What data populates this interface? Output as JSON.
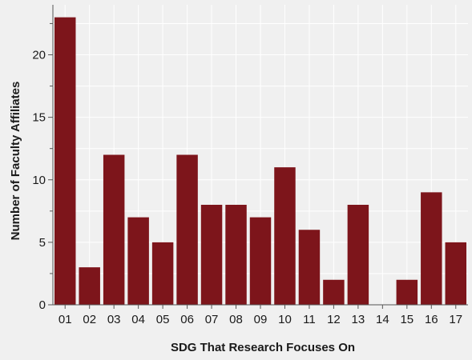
{
  "chart_data": {
    "type": "bar",
    "categories": [
      "01",
      "02",
      "03",
      "04",
      "05",
      "06",
      "07",
      "08",
      "09",
      "10",
      "11",
      "12",
      "13",
      "14",
      "15",
      "16",
      "17"
    ],
    "values": [
      23,
      3,
      12,
      7,
      5,
      12,
      8,
      8,
      7,
      11,
      6,
      2,
      8,
      0,
      2,
      9,
      5
    ],
    "title": "",
    "xlabel": "SDG That Research Focuses On",
    "ylabel": "Number of Faculty Affiliates",
    "ylim": [
      0,
      24
    ],
    "yticks": [
      0,
      5,
      10,
      15,
      20
    ],
    "grid": true,
    "colors": {
      "bar": "#7d151b",
      "background": "#f0f0f0",
      "grid": "#ffffff",
      "axis": "#555555"
    }
  }
}
